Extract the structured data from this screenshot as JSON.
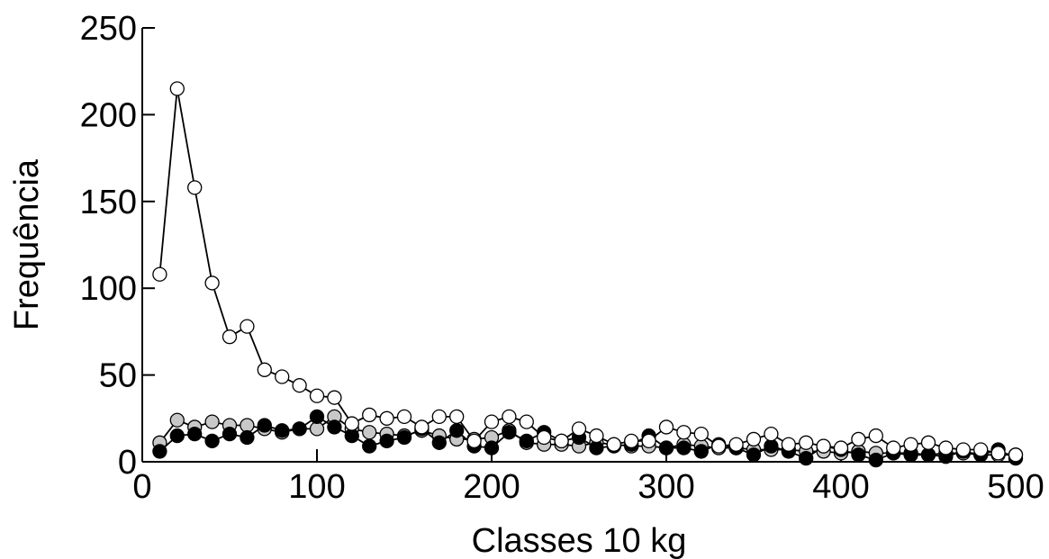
{
  "chart_data": {
    "type": "line",
    "xlabel": "Classes 10 kg",
    "ylabel": "Frequência",
    "xlim": [
      0,
      500
    ],
    "ylim": [
      0,
      250
    ],
    "xticks": [
      0,
      100,
      200,
      300,
      400,
      500
    ],
    "yticks": [
      0,
      50,
      100,
      150,
      200,
      250
    ],
    "grid": false,
    "legend": "none",
    "x": [
      10,
      20,
      30,
      40,
      50,
      60,
      70,
      80,
      90,
      100,
      110,
      120,
      130,
      140,
      150,
      160,
      170,
      180,
      190,
      200,
      210,
      220,
      230,
      240,
      250,
      260,
      270,
      280,
      290,
      300,
      310,
      320,
      330,
      340,
      350,
      360,
      370,
      380,
      390,
      400,
      410,
      420,
      430,
      440,
      450,
      460,
      470,
      480,
      490,
      500
    ],
    "series": [
      {
        "marker": "open-circle",
        "color": "#ffffff",
        "values": [
          108,
          215,
          158,
          103,
          72,
          78,
          53,
          49,
          44,
          38,
          37,
          22,
          27,
          25,
          26,
          20,
          26,
          26,
          12,
          23,
          26,
          23,
          14,
          12,
          19,
          15,
          10,
          12,
          12,
          20,
          17,
          16,
          9,
          10,
          13,
          16,
          10,
          11,
          9,
          8,
          13,
          15,
          8,
          10,
          11,
          8,
          7,
          7,
          5,
          4
        ]
      },
      {
        "marker": "filled-circle",
        "color": "#000000",
        "values": [
          6,
          15,
          16,
          12,
          16,
          14,
          21,
          18,
          19,
          26,
          20,
          15,
          9,
          12,
          14,
          19,
          11,
          18,
          9,
          8,
          17,
          12,
          17,
          12,
          14,
          8,
          9,
          10,
          15,
          8,
          8,
          6,
          10,
          8,
          4,
          9,
          6,
          2,
          9,
          7,
          4,
          1,
          5,
          4,
          4,
          3,
          6,
          4,
          7,
          2
        ]
      },
      {
        "marker": "grey-circle",
        "color": "#c8c8c8",
        "values": [
          11,
          24,
          20,
          23,
          21,
          21,
          19,
          17,
          19,
          19,
          26,
          19,
          17,
          16,
          15,
          18,
          15,
          13,
          13,
          14,
          18,
          11,
          10,
          10,
          9,
          11,
          10,
          9,
          9,
          8,
          10,
          9,
          8,
          8,
          7,
          7,
          7,
          6,
          6,
          5,
          6,
          5,
          5,
          5,
          4,
          5,
          5,
          4,
          4,
          4
        ]
      }
    ]
  }
}
